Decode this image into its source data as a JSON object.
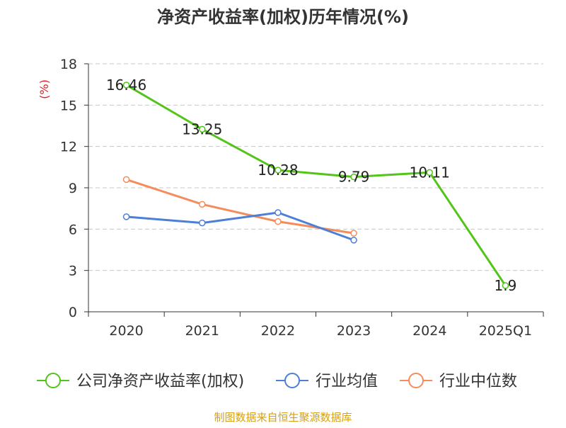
{
  "chart_data": {
    "type": "line",
    "title": "净资产收益率(加权)历年情况(%)",
    "ylabel": "(%)",
    "ylim": [
      0,
      18
    ],
    "yticks": [
      0,
      3,
      6,
      9,
      12,
      15,
      18
    ],
    "grid": true,
    "legend_position": "bottom",
    "categories": [
      "2020",
      "2021",
      "2022",
      "2023",
      "2024",
      "2025Q1"
    ],
    "series": [
      {
        "name": "公司净资产收益率(加权)",
        "color": "#52c41a",
        "values": [
          16.46,
          13.25,
          10.28,
          9.79,
          10.11,
          1.9
        ],
        "labels": [
          "16.46",
          "13.25",
          "10.28",
          "9.79",
          "10.11",
          "1.9"
        ]
      },
      {
        "name": "行业均值",
        "color": "#4d7fd6",
        "values": [
          6.9,
          6.45,
          7.2,
          5.2,
          null,
          null
        ]
      },
      {
        "name": "行业中位数",
        "color": "#f58c5c",
        "values": [
          9.6,
          7.8,
          6.55,
          5.7,
          null,
          null
        ]
      }
    ]
  },
  "source": "制图数据来自恒生聚源数据库",
  "colors": {
    "axis": "#333333",
    "grid": "#c8c8c8",
    "ylabel": "#e02020",
    "source": "#d4a017"
  }
}
